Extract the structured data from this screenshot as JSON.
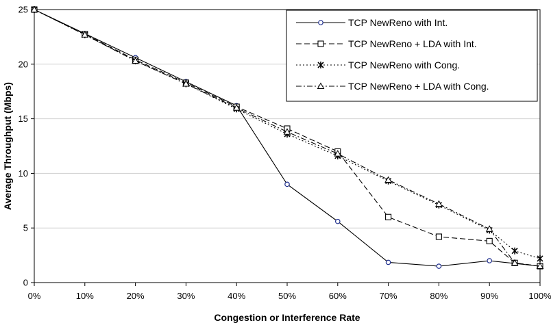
{
  "chart_data": {
    "type": "line",
    "title": "",
    "xlabel": "Congestion or Interference Rate",
    "ylabel": "Average Throughput (Mbps)",
    "xlim": [
      0,
      100
    ],
    "ylim": [
      0,
      25
    ],
    "x_ticks": [
      0,
      10,
      20,
      30,
      40,
      50,
      60,
      70,
      80,
      90,
      100
    ],
    "x_tick_labels": [
      "0%",
      "10%",
      "20%",
      "30%",
      "40%",
      "50%",
      "60%",
      "70%",
      "80%",
      "90%",
      "100%"
    ],
    "y_ticks": [
      0,
      5,
      10,
      15,
      20,
      25
    ],
    "y_tick_labels": [
      "0",
      "5",
      "10",
      "15",
      "20",
      "25"
    ],
    "grid": "horizontal",
    "legend_position": "top-right",
    "series": [
      {
        "name": "TCP NewReno with Int.",
        "line_style": "solid",
        "marker": "circle",
        "color": "#000000",
        "marker_color": "#1f2f8f",
        "x": [
          0,
          10,
          20,
          30,
          40,
          50,
          60,
          70,
          80,
          90,
          95,
          100
        ],
        "y": [
          25,
          22.8,
          20.6,
          18.4,
          16.2,
          9.0,
          5.6,
          1.85,
          1.5,
          2.0,
          1.75,
          1.5
        ]
      },
      {
        "name": "TCP NewReno + LDA with Int.",
        "line_style": "dashed",
        "marker": "square",
        "color": "#000000",
        "marker_color": "#000000",
        "x": [
          0,
          10,
          20,
          30,
          40,
          50,
          60,
          70,
          80,
          90,
          95,
          100
        ],
        "y": [
          25,
          22.75,
          20.4,
          18.3,
          16.1,
          14.1,
          12.0,
          6.0,
          4.2,
          3.8,
          1.8,
          1.5
        ]
      },
      {
        "name": "TCP NewReno with Cong.",
        "line_style": "dotted",
        "marker": "star",
        "color": "#000000",
        "marker_color": "#000000",
        "x": [
          0,
          10,
          20,
          30,
          40,
          50,
          60,
          70,
          80,
          90,
          95,
          100
        ],
        "y": [
          25,
          22.7,
          20.3,
          18.2,
          15.9,
          13.6,
          11.6,
          9.3,
          7.1,
          4.8,
          2.9,
          2.2
        ]
      },
      {
        "name": "TCP NewReno + LDA with Cong.",
        "line_style": "dashdot",
        "marker": "triangle",
        "color": "#000000",
        "marker_color": "#000000",
        "x": [
          0,
          10,
          20,
          30,
          40,
          50,
          60,
          70,
          80,
          90,
          95,
          100
        ],
        "y": [
          25,
          22.7,
          20.3,
          18.2,
          16.0,
          13.8,
          11.8,
          9.4,
          7.2,
          4.9,
          1.8,
          1.5
        ]
      }
    ]
  }
}
